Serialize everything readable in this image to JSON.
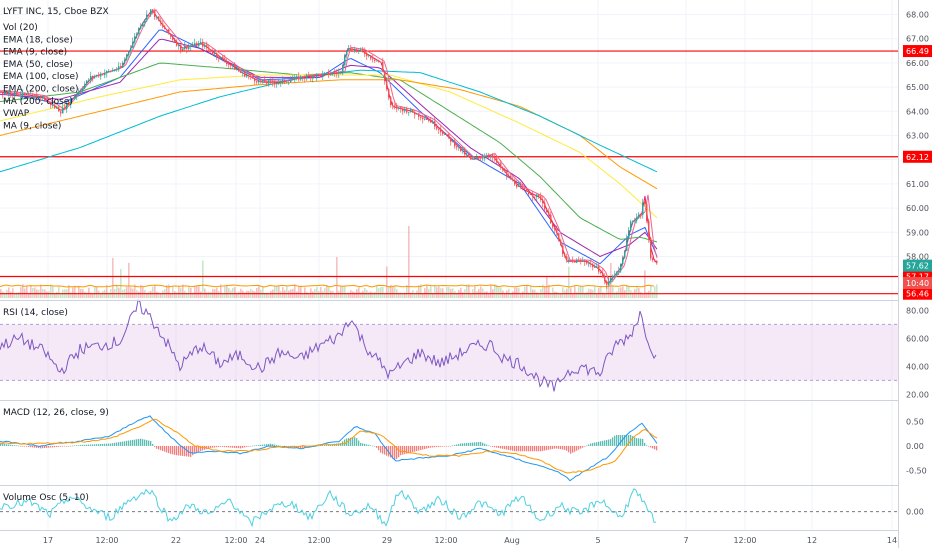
{
  "chart_data": {
    "type": "candlestick",
    "symbol_title": "LYFT INC, 15, Cboe BZX",
    "main_indicators": [
      {
        "label": "Vol (20)"
      },
      {
        "label": "EMA (18, close)",
        "color": "#9c27b0"
      },
      {
        "label": "EMA (9, close)",
        "color": "#2962ff"
      },
      {
        "label": "EMA (50, close)",
        "color": "#4caf50"
      },
      {
        "label": "EMA (100, close)",
        "color": "#ffeb3b"
      },
      {
        "label": "EMA (200, close)",
        "color": "#ff9800"
      },
      {
        "label": "MA (200, close)",
        "color": "#00bcd4"
      },
      {
        "label": "VWAP",
        "color": "#f06292"
      },
      {
        "label": "MA (9, close)",
        "color": "#e91e63"
      }
    ],
    "x_ticks": [
      "17",
      "12:00",
      "22",
      "12:00",
      "24",
      "12:00",
      "29",
      "12:00",
      "Aug",
      "5",
      "7",
      "12:00",
      "12",
      "14"
    ],
    "price_axis": {
      "ticks": [
        "68.00",
        "67.00",
        "66.00",
        "65.00",
        "64.00",
        "63.00",
        "62.00",
        "61.00",
        "60.00",
        "59.00",
        "58.00"
      ],
      "ylim": [
        56.2,
        68.6
      ]
    },
    "horizontal_levels": [
      {
        "value": 66.49,
        "label": "66.49"
      },
      {
        "value": 62.12,
        "label": "62.12"
      },
      {
        "value": 57.17,
        "label": "57.17"
      },
      {
        "value": 56.46,
        "label": "56.46"
      }
    ],
    "price_tags": [
      {
        "value": 57.62,
        "label": "57.62",
        "color": "#26a69a"
      },
      {
        "value": 57.15,
        "label": "10:40",
        "color": "#ef5350"
      }
    ],
    "price_series": {
      "anchors": [
        [
          0,
          64.8
        ],
        [
          40,
          64.6
        ],
        [
          60,
          64.0
        ],
        [
          90,
          65.4
        ],
        [
          120,
          65.8
        ],
        [
          140,
          67.6
        ],
        [
          150,
          68.2
        ],
        [
          160,
          67.6
        ],
        [
          180,
          66.6
        ],
        [
          200,
          66.8
        ],
        [
          220,
          66.2
        ],
        [
          240,
          65.6
        ],
        [
          260,
          65.2
        ],
        [
          280,
          65.2
        ],
        [
          300,
          65.4
        ],
        [
          320,
          65.5
        ],
        [
          340,
          65.6
        ],
        [
          345,
          66.6
        ],
        [
          360,
          66.5
        ],
        [
          380,
          66.0
        ],
        [
          390,
          64.2
        ],
        [
          410,
          64.0
        ],
        [
          430,
          63.6
        ],
        [
          450,
          62.8
        ],
        [
          470,
          62.0
        ],
        [
          490,
          62.2
        ],
        [
          505,
          61.4
        ],
        [
          520,
          60.8
        ],
        [
          540,
          60.4
        ],
        [
          555,
          59.0
        ],
        [
          565,
          57.8
        ],
        [
          585,
          57.8
        ],
        [
          600,
          57.4
        ],
        [
          605,
          56.8
        ],
        [
          620,
          57.6
        ],
        [
          630,
          59.4
        ],
        [
          640,
          59.8
        ],
        [
          643,
          60.5
        ],
        [
          650,
          58.0
        ],
        [
          657,
          57.6
        ]
      ]
    },
    "moving_averages": [
      {
        "name": "EMA (9, close)",
        "color": "#2962ff",
        "anchors": [
          [
            0,
            64.8
          ],
          [
            60,
            64.3
          ],
          [
            120,
            65.4
          ],
          [
            160,
            67.4
          ],
          [
            200,
            66.6
          ],
          [
            260,
            65.3
          ],
          [
            320,
            65.4
          ],
          [
            350,
            66.2
          ],
          [
            380,
            65.6
          ],
          [
            420,
            64.0
          ],
          [
            470,
            62.2
          ],
          [
            520,
            61.0
          ],
          [
            560,
            58.6
          ],
          [
            600,
            57.7
          ],
          [
            630,
            58.9
          ],
          [
            645,
            59.2
          ],
          [
            657,
            58.0
          ]
        ]
      },
      {
        "name": "EMA (18, close)",
        "color": "#9c27b0",
        "anchors": [
          [
            0,
            64.7
          ],
          [
            60,
            64.5
          ],
          [
            120,
            65.2
          ],
          [
            160,
            67.0
          ],
          [
            200,
            66.6
          ],
          [
            260,
            65.4
          ],
          [
            320,
            65.4
          ],
          [
            350,
            65.9
          ],
          [
            380,
            65.8
          ],
          [
            420,
            64.3
          ],
          [
            470,
            62.5
          ],
          [
            520,
            61.2
          ],
          [
            560,
            59.0
          ],
          [
            600,
            58.0
          ],
          [
            630,
            58.5
          ],
          [
            645,
            59.0
          ],
          [
            657,
            58.3
          ]
        ]
      },
      {
        "name": "EMA (50, close)",
        "color": "#4caf50",
        "anchors": [
          [
            0,
            64.4
          ],
          [
            80,
            64.8
          ],
          [
            160,
            66.0
          ],
          [
            220,
            65.8
          ],
          [
            300,
            65.5
          ],
          [
            350,
            65.6
          ],
          [
            400,
            65.3
          ],
          [
            450,
            64.0
          ],
          [
            500,
            62.7
          ],
          [
            540,
            61.3
          ],
          [
            580,
            59.6
          ],
          [
            620,
            58.7
          ],
          [
            640,
            58.8
          ],
          [
            657,
            58.6
          ]
        ]
      },
      {
        "name": "EMA (100, close)",
        "color": "#ffeb3b",
        "anchors": [
          [
            0,
            63.6
          ],
          [
            100,
            64.6
          ],
          [
            180,
            65.3
          ],
          [
            260,
            65.5
          ],
          [
            340,
            65.5
          ],
          [
            390,
            65.5
          ],
          [
            450,
            64.8
          ],
          [
            520,
            63.5
          ],
          [
            580,
            62.3
          ],
          [
            620,
            61.0
          ],
          [
            657,
            59.6
          ]
        ]
      },
      {
        "name": "EMA (200, close)",
        "color": "#ff9800",
        "anchors": [
          [
            0,
            63.0
          ],
          [
            100,
            64.0
          ],
          [
            180,
            64.8
          ],
          [
            260,
            65.1
          ],
          [
            340,
            65.3
          ],
          [
            400,
            65.3
          ],
          [
            460,
            64.9
          ],
          [
            520,
            64.2
          ],
          [
            580,
            63.0
          ],
          [
            620,
            61.7
          ],
          [
            657,
            60.8
          ]
        ]
      },
      {
        "name": "MA (200, close)",
        "color": "#00bcd4",
        "anchors": [
          [
            0,
            61.5
          ],
          [
            80,
            62.5
          ],
          [
            160,
            63.8
          ],
          [
            220,
            64.6
          ],
          [
            300,
            65.4
          ],
          [
            360,
            65.7
          ],
          [
            420,
            65.6
          ],
          [
            480,
            64.8
          ],
          [
            540,
            63.8
          ],
          [
            600,
            62.6
          ],
          [
            657,
            61.5
          ]
        ]
      }
    ],
    "rsi": {
      "label": "RSI (14, close)",
      "ticks": [
        "80.00",
        "60.00",
        "40.00",
        "20.00"
      ],
      "ylim": [
        16,
        86
      ],
      "band": [
        30,
        70
      ],
      "anchors": [
        [
          0,
          55
        ],
        [
          20,
          60
        ],
        [
          45,
          50
        ],
        [
          60,
          36
        ],
        [
          80,
          52
        ],
        [
          100,
          55
        ],
        [
          120,
          58
        ],
        [
          138,
          83
        ],
        [
          145,
          80
        ],
        [
          160,
          65
        ],
        [
          180,
          40
        ],
        [
          200,
          55
        ],
        [
          220,
          42
        ],
        [
          240,
          48
        ],
        [
          260,
          38
        ],
        [
          280,
          50
        ],
        [
          300,
          45
        ],
        [
          320,
          55
        ],
        [
          340,
          62
        ],
        [
          350,
          75
        ],
        [
          365,
          55
        ],
        [
          390,
          34
        ],
        [
          400,
          40
        ],
        [
          420,
          50
        ],
        [
          440,
          42
        ],
        [
          470,
          53
        ],
        [
          490,
          56
        ],
        [
          505,
          45
        ],
        [
          520,
          42
        ],
        [
          540,
          30
        ],
        [
          555,
          24
        ],
        [
          565,
          35
        ],
        [
          580,
          40
        ],
        [
          600,
          35
        ],
        [
          615,
          55
        ],
        [
          630,
          62
        ],
        [
          640,
          78
        ],
        [
          648,
          60
        ],
        [
          657,
          44
        ]
      ]
    },
    "macd": {
      "label": "MACD (12, 26, close, 9)",
      "ticks": [
        "0.50",
        "0.00",
        "-0.50"
      ],
      "ylim": [
        -0.8,
        0.9
      ],
      "macd_anchors": [
        [
          0,
          0.1
        ],
        [
          40,
          0.0
        ],
        [
          80,
          0.1
        ],
        [
          110,
          0.2
        ],
        [
          140,
          0.55
        ],
        [
          150,
          0.6
        ],
        [
          170,
          0.2
        ],
        [
          190,
          -0.15
        ],
        [
          210,
          -0.1
        ],
        [
          240,
          -0.15
        ],
        [
          270,
          0.0
        ],
        [
          300,
          -0.05
        ],
        [
          340,
          0.1
        ],
        [
          355,
          0.4
        ],
        [
          375,
          0.25
        ],
        [
          395,
          -0.3
        ],
        [
          420,
          -0.25
        ],
        [
          450,
          -0.2
        ],
        [
          480,
          -0.05
        ],
        [
          505,
          -0.2
        ],
        [
          530,
          -0.35
        ],
        [
          555,
          -0.5
        ],
        [
          570,
          -0.7
        ],
        [
          590,
          -0.45
        ],
        [
          610,
          -0.2
        ],
        [
          630,
          0.3
        ],
        [
          642,
          0.45
        ],
        [
          657,
          0.05
        ]
      ],
      "signal_anchors": [
        [
          0,
          0.05
        ],
        [
          40,
          0.05
        ],
        [
          80,
          0.08
        ],
        [
          110,
          0.15
        ],
        [
          140,
          0.4
        ],
        [
          155,
          0.55
        ],
        [
          175,
          0.3
        ],
        [
          195,
          0.0
        ],
        [
          220,
          -0.1
        ],
        [
          250,
          -0.1
        ],
        [
          280,
          -0.02
        ],
        [
          310,
          0.0
        ],
        [
          345,
          0.05
        ],
        [
          360,
          0.3
        ],
        [
          380,
          0.25
        ],
        [
          400,
          -0.1
        ],
        [
          430,
          -0.2
        ],
        [
          460,
          -0.2
        ],
        [
          490,
          -0.1
        ],
        [
          515,
          -0.15
        ],
        [
          540,
          -0.3
        ],
        [
          565,
          -0.55
        ],
        [
          590,
          -0.5
        ],
        [
          615,
          -0.3
        ],
        [
          635,
          0.2
        ],
        [
          645,
          0.35
        ],
        [
          657,
          0.15
        ]
      ]
    },
    "volume_osc": {
      "label": "Volume Osc (5, 10)",
      "ticks": [
        "0.00"
      ],
      "ylim": [
        -30,
        40
      ],
      "anchors": [
        [
          0,
          10
        ],
        [
          30,
          15
        ],
        [
          50,
          -5
        ],
        [
          70,
          25
        ],
        [
          90,
          5
        ],
        [
          110,
          -10
        ],
        [
          130,
          20
        ],
        [
          150,
          35
        ],
        [
          170,
          -15
        ],
        [
          190,
          10
        ],
        [
          210,
          -5
        ],
        [
          230,
          20
        ],
        [
          250,
          -20
        ],
        [
          270,
          5
        ],
        [
          290,
          15
        ],
        [
          310,
          -10
        ],
        [
          330,
          30
        ],
        [
          350,
          -5
        ],
        [
          370,
          10
        ],
        [
          385,
          -20
        ],
        [
          400,
          35
        ],
        [
          420,
          0
        ],
        [
          440,
          20
        ],
        [
          460,
          -10
        ],
        [
          480,
          15
        ],
        [
          500,
          -5
        ],
        [
          520,
          25
        ],
        [
          540,
          -15
        ],
        [
          560,
          10
        ],
        [
          580,
          -5
        ],
        [
          600,
          20
        ],
        [
          620,
          -10
        ],
        [
          635,
          35
        ],
        [
          648,
          0
        ],
        [
          657,
          -20
        ]
      ]
    }
  }
}
